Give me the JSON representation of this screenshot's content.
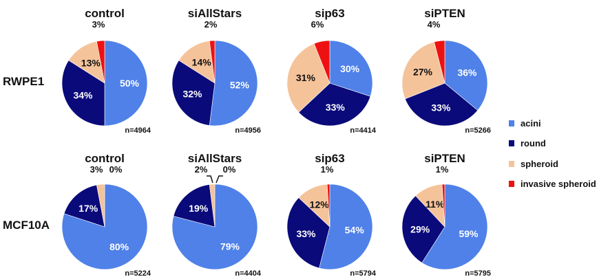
{
  "chart_data": {
    "type": "pie",
    "conditions": [
      "control",
      "siAllStars",
      "sip63",
      "siPTEN"
    ],
    "cell_lines": [
      "RWPE1",
      "MCF10A"
    ],
    "legend": [
      {
        "label": "acini",
        "color": "#4F81E8"
      },
      {
        "label": "round",
        "color": "#0A0A7A"
      },
      {
        "label": "spheroid",
        "color": "#F5C39A"
      },
      {
        "label": "invasive spheroid",
        "color": "#EE1111"
      }
    ],
    "charts": [
      {
        "cell_line": "RWPE1",
        "condition": "control",
        "n": "n=4964",
        "values": [
          50,
          34,
          13,
          3
        ],
        "labels": [
          "50%",
          "34%",
          "13%",
          "3%"
        ]
      },
      {
        "cell_line": "RWPE1",
        "condition": "siAllStars",
        "n": "n=4956",
        "values": [
          52,
          32,
          14,
          2
        ],
        "labels": [
          "52%",
          "32%",
          "14%",
          "2%"
        ]
      },
      {
        "cell_line": "RWPE1",
        "condition": "sip63",
        "n": "n=4414",
        "values": [
          30,
          33,
          31,
          6
        ],
        "labels": [
          "30%",
          "33%",
          "31%",
          "6%"
        ]
      },
      {
        "cell_line": "RWPE1",
        "condition": "siPTEN",
        "n": "n=5266",
        "values": [
          36,
          33,
          27,
          4
        ],
        "labels": [
          "36%",
          "33%",
          "27%",
          "4%"
        ]
      },
      {
        "cell_line": "MCF10A",
        "condition": "control",
        "n": "n=5224",
        "values": [
          80,
          17,
          3,
          0
        ],
        "labels": [
          "80%",
          "17%",
          "3%",
          "0%"
        ]
      },
      {
        "cell_line": "MCF10A",
        "condition": "siAllStars",
        "n": "n=4404",
        "values": [
          79,
          19,
          2,
          0
        ],
        "labels": [
          "79%",
          "19%",
          "2%",
          "0%"
        ]
      },
      {
        "cell_line": "MCF10A",
        "condition": "sip63",
        "n": "n=5794",
        "values": [
          54,
          33,
          12,
          1
        ],
        "labels": [
          "54%",
          "33%",
          "12%",
          "1%"
        ]
      },
      {
        "cell_line": "MCF10A",
        "condition": "siPTEN",
        "n": "n=5795",
        "values": [
          59,
          29,
          11,
          1
        ],
        "labels": [
          "59%",
          "29%",
          "11%",
          "1%"
        ]
      }
    ]
  }
}
